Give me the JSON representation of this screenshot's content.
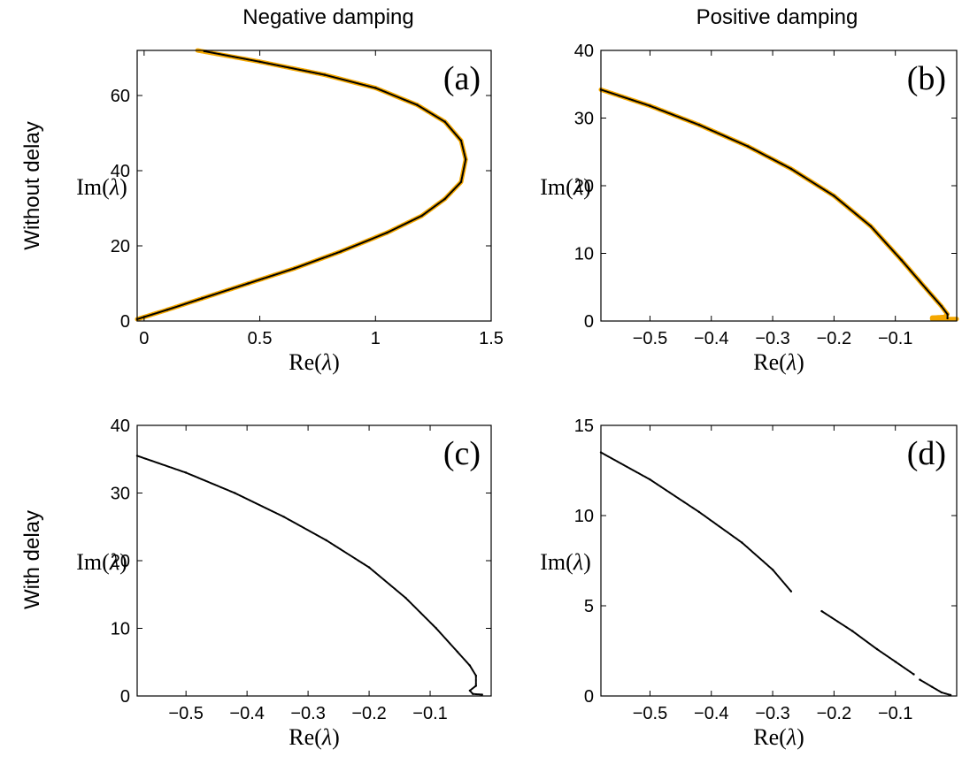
{
  "column_titles": [
    "Negative damping",
    "Positive damping"
  ],
  "row_titles": [
    "Without delay",
    "With delay"
  ],
  "colors": {
    "model": "#f5a800",
    "data": "#000000"
  },
  "chart_data": [
    {
      "type": "scatter",
      "panel": "(a)",
      "xlabel": "Re(λ)",
      "ylabel": "Im(λ)",
      "xlim": [
        -0.03,
        1.5
      ],
      "ylim": [
        0,
        72
      ],
      "xticks": [
        0,
        0.5,
        1,
        1.5
      ],
      "xtick_labels": [
        "0",
        "0.5",
        "1",
        "1.5"
      ],
      "yticks": [
        0,
        20,
        40,
        60
      ],
      "ytick_labels": [
        "0",
        "20",
        "40",
        "60"
      ],
      "series": [
        {
          "style": "orange",
          "x": [
            -0.03,
            0.1,
            0.25,
            0.45,
            0.65,
            0.85,
            1.05,
            1.2,
            1.3,
            1.37,
            1.39,
            1.37,
            1.3,
            1.18,
            1.0,
            0.78,
            0.5,
            0.23
          ],
          "y": [
            0.5,
            3,
            6,
            10,
            14,
            18.5,
            23.5,
            28,
            32.5,
            37,
            43,
            48,
            53,
            57.5,
            62,
            65.5,
            69,
            72
          ]
        },
        {
          "style": "black",
          "x": [
            -0.03,
            0.1,
            0.25,
            0.45,
            0.65,
            0.85,
            1.05,
            1.2,
            1.3,
            1.37,
            1.39,
            1.37,
            1.3,
            1.18,
            1.0,
            0.78,
            0.5,
            0.26
          ],
          "y": [
            0.5,
            3,
            6,
            10,
            14,
            18.5,
            23.5,
            28,
            32.5,
            37,
            43,
            48,
            53,
            57.5,
            62,
            65.5,
            69,
            71.8
          ]
        }
      ]
    },
    {
      "type": "scatter",
      "panel": "(b)",
      "xlabel": "Re(λ)",
      "ylabel": "Im(λ)",
      "xlim": [
        -0.58,
        0.0
      ],
      "ylim": [
        0,
        40
      ],
      "xticks": [
        -0.5,
        -0.4,
        -0.3,
        -0.2,
        -0.1
      ],
      "xtick_labels": [
        "−0.5",
        "−0.4",
        "−0.3",
        "−0.2",
        "−0.1"
      ],
      "yticks": [
        0,
        10,
        20,
        30,
        40
      ],
      "ytick_labels": [
        "0",
        "10",
        "20",
        "30",
        "40"
      ],
      "series": [
        {
          "style": "orange",
          "x": [
            -0.58,
            -0.5,
            -0.42,
            -0.34,
            -0.27,
            -0.2,
            -0.14,
            -0.09,
            -0.05,
            -0.025,
            -0.015,
            -0.02,
            -0.04,
            -0.04,
            0.0
          ],
          "y": [
            34.2,
            31.8,
            29.0,
            25.8,
            22.5,
            18.5,
            14.0,
            9.0,
            4.8,
            2.2,
            1.0,
            0.6,
            0.5,
            0.3,
            0.3
          ]
        },
        {
          "style": "black",
          "x": [
            -0.58,
            -0.5,
            -0.42,
            -0.34,
            -0.27,
            -0.2,
            -0.14,
            -0.09,
            -0.05,
            -0.025,
            -0.015,
            -0.015
          ],
          "y": [
            34.2,
            31.8,
            29.0,
            25.8,
            22.5,
            18.5,
            14.0,
            9.0,
            4.8,
            2.2,
            1.0,
            0.4
          ]
        }
      ]
    },
    {
      "type": "scatter",
      "panel": "(c)",
      "xlabel": "Re(λ)",
      "ylabel": "Im(λ)",
      "xlim": [
        -0.58,
        0.0
      ],
      "ylim": [
        0,
        40
      ],
      "xticks": [
        -0.5,
        -0.4,
        -0.3,
        -0.2,
        -0.1
      ],
      "xtick_labels": [
        "−0.5",
        "−0.4",
        "−0.3",
        "−0.2",
        "−0.1"
      ],
      "yticks": [
        0,
        10,
        20,
        30,
        40
      ],
      "ytick_labels": [
        "0",
        "10",
        "20",
        "30",
        "40"
      ],
      "series": [
        {
          "style": "black",
          "x": [
            -0.58,
            -0.5,
            -0.42,
            -0.34,
            -0.27,
            -0.2,
            -0.14,
            -0.09,
            -0.055,
            -0.035,
            -0.025,
            -0.025,
            -0.035,
            -0.03,
            -0.015
          ],
          "y": [
            35.5,
            33.0,
            30.0,
            26.5,
            23.0,
            19.0,
            14.5,
            10.0,
            6.5,
            4.5,
            3.0,
            1.5,
            0.8,
            0.3,
            0.2
          ]
        }
      ]
    },
    {
      "type": "scatter",
      "panel": "(d)",
      "xlabel": "Re(λ)",
      "ylabel": "Im(λ)",
      "xlim": [
        -0.58,
        0.0
      ],
      "ylim": [
        0,
        15
      ],
      "xticks": [
        -0.5,
        -0.4,
        -0.3,
        -0.2,
        -0.1
      ],
      "xtick_labels": [
        "−0.5",
        "−0.4",
        "−0.3",
        "−0.2",
        "−0.1"
      ],
      "yticks": [
        0,
        5,
        10,
        15
      ],
      "ytick_labels": [
        "0",
        "5",
        "10",
        "15"
      ],
      "series": [
        {
          "style": "black",
          "x": [
            -0.58,
            -0.5,
            -0.42,
            -0.35,
            -0.3,
            -0.27
          ],
          "y": [
            13.5,
            12.0,
            10.2,
            8.5,
            7.0,
            5.8
          ]
        },
        {
          "style": "black",
          "x": [
            -0.22,
            -0.17,
            -0.13,
            -0.1,
            -0.07
          ],
          "y": [
            4.7,
            3.6,
            2.6,
            1.9,
            1.2
          ]
        },
        {
          "style": "black",
          "x": [
            -0.06,
            -0.04,
            -0.025,
            -0.01
          ],
          "y": [
            0.9,
            0.5,
            0.2,
            0.05
          ]
        }
      ]
    }
  ]
}
